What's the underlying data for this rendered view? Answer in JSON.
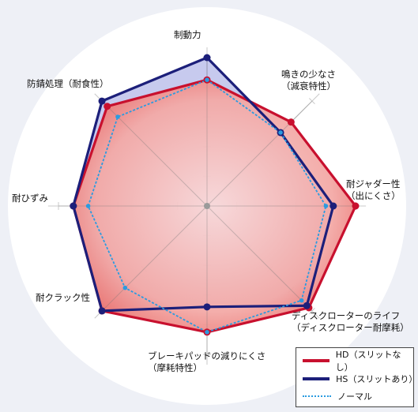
{
  "chart_data": {
    "type": "radar",
    "categories": [
      [
        "制動力"
      ],
      [
        "鳴きの少なさ",
        "（減衰特性）"
      ],
      [
        "耐ジャダー性",
        "（出にくさ）"
      ],
      [
        "ディスクローターのライフ",
        "（ディスクローター耐摩耗）"
      ],
      [
        "ブレーキパッドの減りにくさ",
        "（摩耗特性）"
      ],
      [
        "耐クラック性"
      ],
      [
        "耐ひずみ"
      ],
      [
        "防錆処理（耐食性）"
      ]
    ],
    "series": [
      {
        "name": "HD（スリットなし）",
        "color": "#c8102e",
        "style": "solid",
        "values": [
          0.85,
          0.8,
          1.0,
          0.97,
          0.85,
          1.0,
          0.9,
          0.95
        ]
      },
      {
        "name": "HS（スリットあり）",
        "color": "#1c1f7a",
        "style": "solid",
        "values": [
          1.0,
          0.7,
          0.85,
          0.95,
          0.68,
          1.0,
          0.9,
          1.0
        ]
      },
      {
        "name": "ノーマル",
        "color": "#2b9be0",
        "style": "dotted",
        "values": [
          0.85,
          0.7,
          0.8,
          0.9,
          0.85,
          0.78,
          0.8,
          0.85
        ]
      }
    ],
    "scale_max": 1.0,
    "grid_rings": 5,
    "legend_position": "bottom-right"
  },
  "legend": {
    "hd": "HD（スリットなし）",
    "hs": "HS（スリットあり）",
    "normal": "ノーマル"
  }
}
